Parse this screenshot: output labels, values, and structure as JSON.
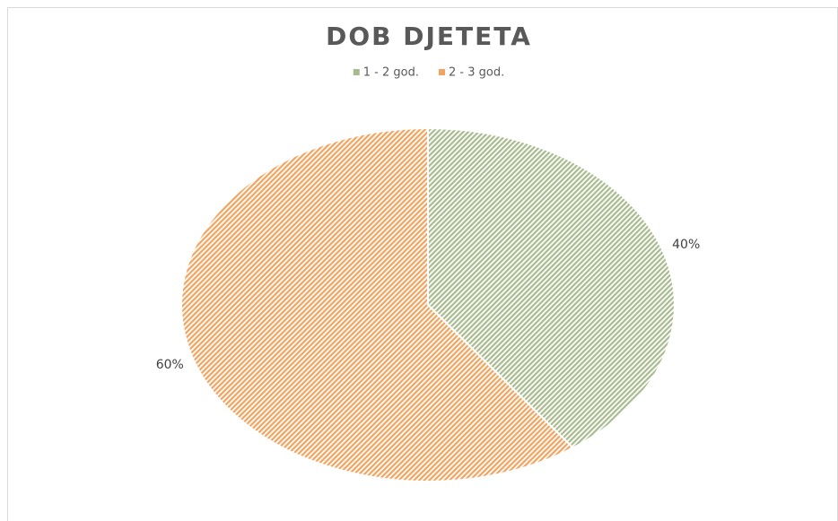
{
  "chart_data": {
    "type": "pie",
    "title": "DOB DJETETA",
    "categories": [
      "1 - 2 god.",
      "2 - 3 god."
    ],
    "values": [
      40,
      60
    ],
    "value_labels": [
      "40%",
      "60%"
    ],
    "colors": [
      "#a9ba8f",
      "#f2a35e"
    ],
    "legend": "top"
  }
}
